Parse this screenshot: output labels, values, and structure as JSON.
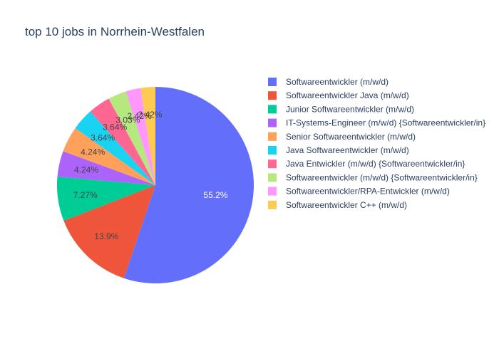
{
  "chart_data": {
    "type": "pie",
    "title": "top 10 jobs in Norrhein-Westfalen",
    "legend_position": "right",
    "labels": [
      "Softwareentwickler (m/w/d)",
      "Softwareentwickler Java (m/w/d)",
      "Junior Softwareentwickler (m/w/d)",
      "IT-Systems-Engineer (m/w/d) {Softwareentwickler/in}",
      "Senior Softwareentwickler (m/w/d)",
      "Java Softwareentwickler (m/w/d)",
      "Java Entwickler (m/w/d) {Softwareentwickler/in}",
      "Softwareentwickler (m/w/d) {Softwareentwickler/in}",
      "Softwareentwickler/RPA-Entwickler (m/w/d)",
      "Softwareentwickler C++ (m/w/d)"
    ],
    "values": [
      55.2,
      13.9,
      7.27,
      4.24,
      4.24,
      3.64,
      3.64,
      3.03,
      2.42,
      2.42
    ],
    "value_labels": [
      "55.2%",
      "13.9%",
      "7.27%",
      "4.24%",
      "4.24%",
      "3.64%",
      "3.64%",
      "3.03%",
      "2.42%",
      "2.42%"
    ],
    "colors": [
      "#636efa",
      "#EF553B",
      "#00cc96",
      "#ab63fa",
      "#FFA15A",
      "#19d3f3",
      "#FF6692",
      "#B6E880",
      "#FF97FF",
      "#FECB52"
    ]
  }
}
